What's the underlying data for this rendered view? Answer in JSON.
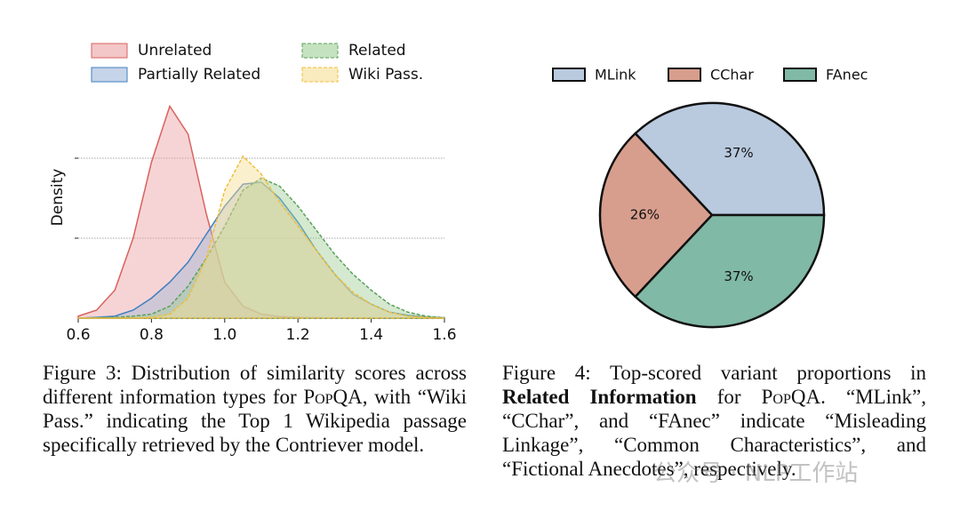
{
  "chart_data": [
    {
      "type": "area",
      "y_label": "Density",
      "x": [
        0.6,
        0.65,
        0.7,
        0.75,
        0.8,
        0.85,
        0.9,
        0.95,
        1.0,
        1.05,
        1.1,
        1.15,
        1.2,
        1.25,
        1.3,
        1.35,
        1.4,
        1.45,
        1.5,
        1.55,
        1.6
      ],
      "series": [
        {
          "name": "Unrelated",
          "color": "#d9625c",
          "fill": "#eba0a3",
          "linestyle": "solid",
          "values": [
            0.05,
            0.2,
            0.7,
            2.0,
            3.9,
            5.3,
            4.6,
            2.6,
            0.9,
            0.3,
            0.1,
            0.04,
            0.02,
            0.01,
            0,
            0,
            0,
            0,
            0,
            0,
            0
          ]
        },
        {
          "name": "Partially Related",
          "color": "#3f7fc0",
          "fill": "#9fb8d8",
          "linestyle": "solid",
          "values": [
            0,
            0.02,
            0.05,
            0.2,
            0.5,
            0.9,
            1.4,
            2.1,
            2.8,
            3.35,
            3.4,
            3.0,
            2.4,
            1.7,
            1.1,
            0.6,
            0.35,
            0.15,
            0.07,
            0.03,
            0.01
          ]
        },
        {
          "name": "Related",
          "color": "#5ba05b",
          "fill": "#9fcf96",
          "linestyle": "dashed",
          "values": [
            0,
            0.01,
            0.02,
            0.05,
            0.1,
            0.3,
            0.8,
            1.5,
            2.3,
            3.2,
            3.5,
            3.3,
            2.8,
            2.2,
            1.6,
            1.1,
            0.7,
            0.35,
            0.15,
            0.05,
            0.01
          ]
        },
        {
          "name": "Wiki Pass.",
          "color": "#f0bf3c",
          "fill": "#f7dd93",
          "linestyle": "dashed",
          "values": [
            0,
            0,
            0,
            0,
            0.02,
            0.1,
            0.5,
            1.5,
            3.2,
            4.05,
            3.6,
            2.9,
            2.3,
            1.7,
            1.1,
            0.65,
            0.35,
            0.15,
            0.05,
            0.02,
            0
          ]
        }
      ],
      "xlim": [
        0.6,
        1.6
      ],
      "xticks": [
        0.6,
        0.8,
        {
          "value": 1,
          "label": "1.0"
        },
        1.2,
        1.4,
        1.6
      ],
      "ylim": [
        0,
        5.6
      ],
      "yticks": [
        2,
        4
      ],
      "grid": true
    },
    {
      "type": "pie",
      "categories": [
        "MLink",
        "CChar",
        "FAnec"
      ],
      "values": [
        37,
        26,
        37
      ],
      "value_labels": [
        "37%",
        "26%",
        "37%"
      ],
      "colors": [
        "#b9cadf",
        "#d89e8d",
        "#80b9a6"
      ]
    }
  ],
  "captions": [
    {
      "pre": "Figure 3: Distribution of similarity scores across different information types for ",
      "smallcaps": "PopQA",
      "post": ", with “Wiki Pass.” indicating the Top 1 Wikipedia passage specifically retrieved by the Contriever model."
    },
    {
      "pre": "Figure 4: Top-scored variant proportions in ",
      "bold": "Related Information",
      "mid": " for ",
      "smallcaps": "PopQA",
      "post": ". “MLink”, “CChar”, and “FAnec” indicate “Misleading Linkage”, “Common Characteristics”, and “Fictional Anecdotes”, respectively."
    }
  ],
  "watermark": "公众号 · NLP工作站"
}
